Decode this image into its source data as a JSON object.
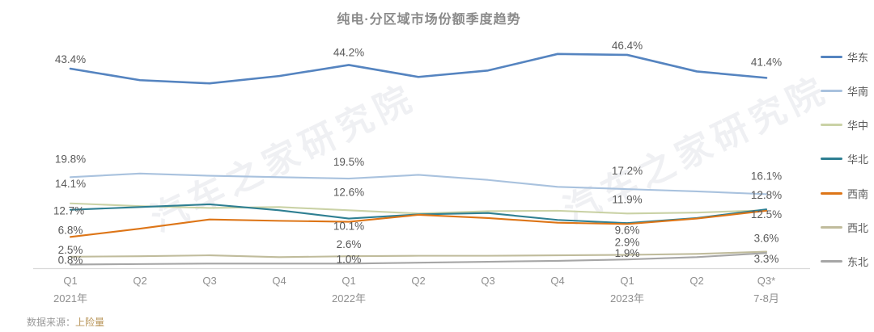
{
  "title": "纯电·分区域市场份额季度趋势",
  "watermark": "汽车之家研究院",
  "source": {
    "prefix": "数据来源：",
    "value": "上险量"
  },
  "legend": {
    "position": "right"
  },
  "chart_data": {
    "type": "line",
    "title": "纯电·分区域市场份额季度趋势",
    "unit": "%",
    "ylim": [
      0,
      49
    ],
    "grid": false,
    "legend_position": "right",
    "x_tick_labels": [
      {
        "q": "Q1",
        "year": "2021年"
      },
      {
        "q": "Q2"
      },
      {
        "q": "Q3"
      },
      {
        "q": "Q4"
      },
      {
        "q": "Q1",
        "year": "2022年"
      },
      {
        "q": "Q2"
      },
      {
        "q": "Q3"
      },
      {
        "q": "Q4"
      },
      {
        "q": "Q1",
        "year": "2023年"
      },
      {
        "q": "Q2"
      },
      {
        "q": "Q3*",
        "year": "7-8月"
      }
    ],
    "series": [
      {
        "name": "华东",
        "color": "#5584C0",
        "values": [
          43.4,
          40.9,
          40.2,
          41.8,
          44.2,
          41.6,
          43.0,
          46.6,
          46.4,
          42.8,
          41.4
        ]
      },
      {
        "name": "华南",
        "color": "#A9C2DE",
        "values": [
          19.8,
          20.6,
          20.1,
          19.8,
          19.5,
          20.3,
          19.2,
          17.7,
          17.2,
          16.7,
          16.1
        ]
      },
      {
        "name": "华中",
        "color": "#CAD2A6",
        "values": [
          14.1,
          13.5,
          13.1,
          13.3,
          12.6,
          11.9,
          12.4,
          12.5,
          11.9,
          12.1,
          12.6
        ]
      },
      {
        "name": "华北",
        "color": "#2E7F92",
        "values": [
          12.7,
          13.3,
          13.9,
          12.6,
          10.8,
          11.7,
          12.0,
          10.5,
          9.8,
          10.9,
          12.8
        ]
      },
      {
        "name": "西南",
        "color": "#DD7517",
        "values": [
          6.8,
          8.6,
          10.6,
          10.3,
          10.1,
          11.6,
          10.9,
          9.9,
          9.6,
          10.8,
          12.5
        ]
      },
      {
        "name": "西北",
        "color": "#C0BC9C",
        "values": [
          2.5,
          2.6,
          2.8,
          2.4,
          2.6,
          2.7,
          2.7,
          2.8,
          2.9,
          3.1,
          3.6
        ]
      },
      {
        "name": "东北",
        "color": "#A6A6A6",
        "values": [
          0.8,
          0.9,
          1.0,
          1.0,
          1.0,
          1.2,
          1.4,
          1.6,
          1.9,
          2.4,
          3.3
        ]
      }
    ],
    "point_labels": [
      {
        "i": 0,
        "series": "华东",
        "text": "43.4%",
        "dy": -11
      },
      {
        "i": 0,
        "series": "华南",
        "text": "19.8%",
        "dy": -22
      },
      {
        "i": 0,
        "series": "华中",
        "text": "14.1%",
        "dy": -24
      },
      {
        "i": 0,
        "series": "华北",
        "text": "12.7%",
        "dy": 2,
        "dx": -2
      },
      {
        "i": 0,
        "series": "西南",
        "text": "6.8%",
        "dy": -8
      },
      {
        "i": 0,
        "series": "西北",
        "text": "2.5%",
        "dy": -8
      },
      {
        "i": 0,
        "series": "东北",
        "text": "0.8%",
        "dy": -5
      },
      {
        "i": 4,
        "series": "华东",
        "text": "44.2%",
        "dy": -15
      },
      {
        "i": 4,
        "series": "华南",
        "text": "19.5%",
        "dy": -20
      },
      {
        "i": 4,
        "series": "华中",
        "text": "12.6%",
        "dy": -22
      },
      {
        "i": 4,
        "series": "西南",
        "text": "10.1%",
        "dy": 6
      },
      {
        "i": 4,
        "series": "西北",
        "text": "2.6%",
        "dy": -14
      },
      {
        "i": 4,
        "series": "东北",
        "text": "1.0%",
        "dy": -5
      },
      {
        "i": 8,
        "series": "华东",
        "text": "46.4%",
        "dy": -11
      },
      {
        "i": 8,
        "series": "华南",
        "text": "17.2%",
        "dy": -22
      },
      {
        "i": 8,
        "series": "华中",
        "text": "11.9%",
        "dy": -17
      },
      {
        "i": 8,
        "series": "西南",
        "text": "9.6%",
        "dy": 8
      },
      {
        "i": 8,
        "series": "西北",
        "text": "2.9%",
        "dy": -15
      },
      {
        "i": 8,
        "series": "东北",
        "text": "1.9%",
        "dy": -7
      },
      {
        "i": 10,
        "series": "华东",
        "text": "41.4%",
        "dy": -19
      },
      {
        "i": 10,
        "series": "华南",
        "text": "16.1%",
        "dy": -22
      },
      {
        "i": 10,
        "series": "华北",
        "text": "12.8%",
        "dy": -17
      },
      {
        "i": 10,
        "series": "西南",
        "text": "12.5%",
        "dy": 5
      },
      {
        "i": 10,
        "series": "西北",
        "text": "3.6%",
        "dy": -16
      },
      {
        "i": 10,
        "series": "东北",
        "text": "3.3%",
        "dy": 8
      }
    ]
  }
}
